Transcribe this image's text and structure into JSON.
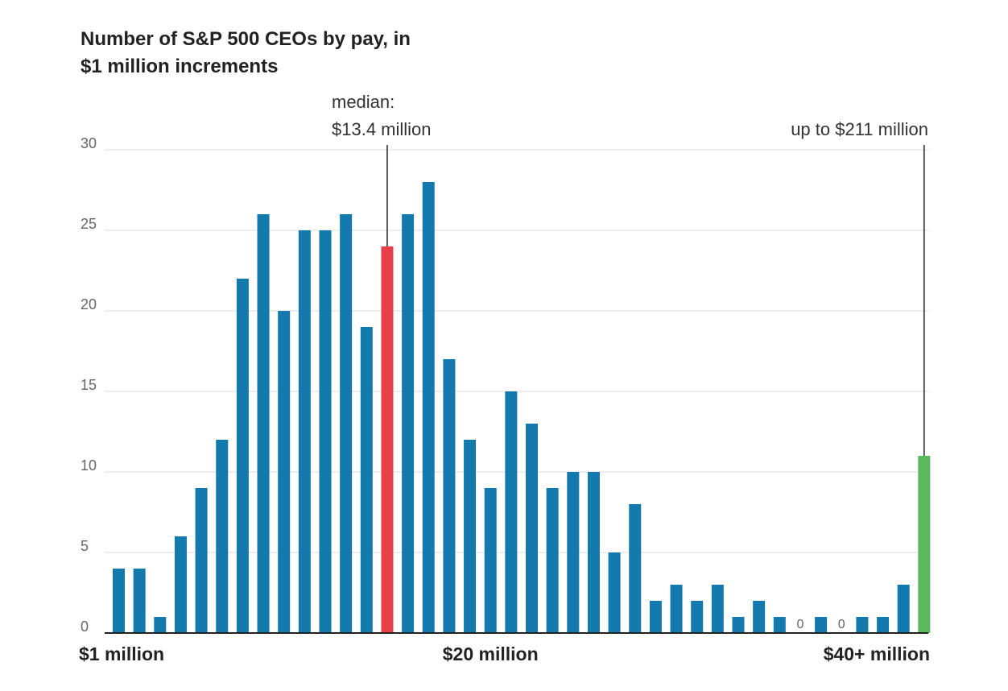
{
  "title_lines": [
    "Number of S&P 500 CEOs by pay, in",
    "$1 million increments"
  ],
  "colors": {
    "bar": "#1479ad",
    "median_bar": "#e8404b",
    "top_bar": "#5cb85c",
    "grid": "#dddddd",
    "axis": "#222222",
    "text": "#333333",
    "muted": "#666666"
  },
  "chart_data": {
    "type": "bar",
    "title": "Number of S&P 500 CEOs by pay, in $1 million increments",
    "xlabel": "",
    "ylabel": "",
    "ylim": [
      0,
      30
    ],
    "yticks": [
      0,
      5,
      10,
      15,
      20,
      25,
      30
    ],
    "grid": true,
    "x_tick_labels": [
      {
        "bin": 1,
        "label": "$1 million"
      },
      {
        "bin": 19,
        "label": "$20 million"
      },
      {
        "bin": 40,
        "label": "$40+ million"
      }
    ],
    "values": [
      4,
      4,
      1,
      6,
      9,
      12,
      22,
      26,
      20,
      25,
      25,
      26,
      19,
      24,
      26,
      28,
      17,
      12,
      9,
      15,
      13,
      9,
      10,
      10,
      5,
      8,
      2,
      3,
      2,
      3,
      1,
      2,
      1,
      0,
      1,
      0,
      1,
      1,
      3,
      11
    ],
    "highlight": [
      {
        "index": 13,
        "role": "median",
        "label_lines": [
          "median:",
          "$13.4 million"
        ]
      },
      {
        "index": 39,
        "role": "top",
        "label_lines": [
          "up to $211 million"
        ]
      }
    ],
    "zero_labels": [
      {
        "index": 33,
        "label": "0"
      },
      {
        "index": 35,
        "label": "0"
      }
    ]
  }
}
